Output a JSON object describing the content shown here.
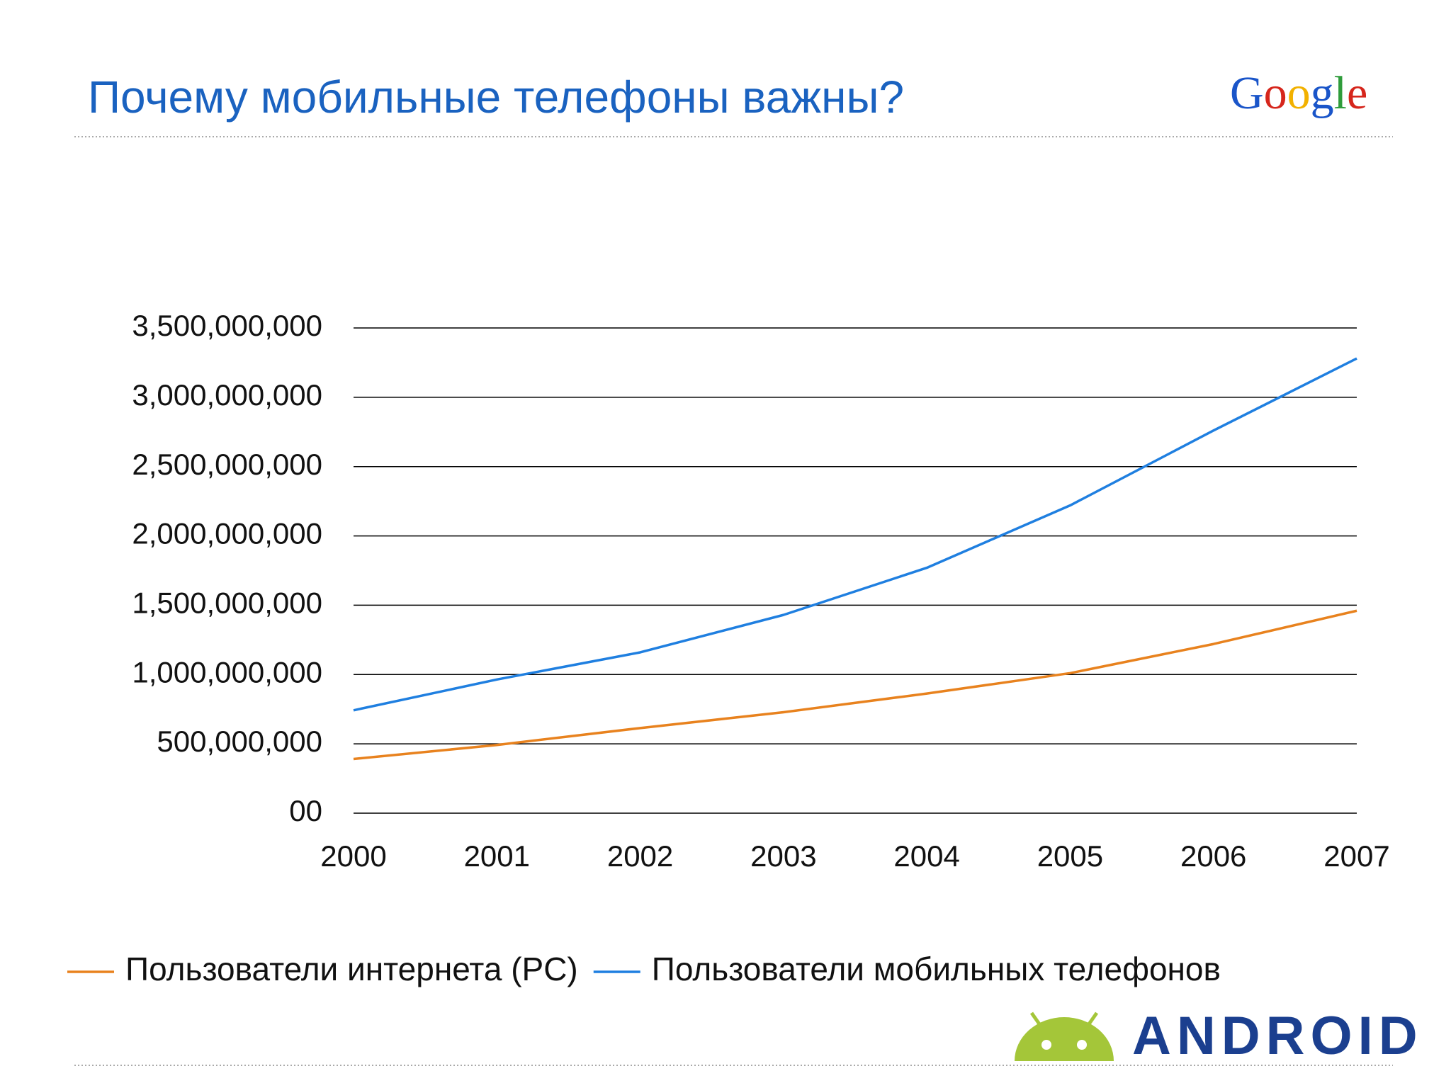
{
  "chart_data": {
    "type": "line",
    "title": "Почему мобильные телефоны важны?",
    "categories": [
      "2000",
      "2001",
      "2002",
      "2003",
      "2004",
      "2005",
      "2006",
      "2007"
    ],
    "series": [
      {
        "name": "Пользователи интернета (PC)",
        "color": "#e8821e",
        "values": [
          391000000,
          492000000,
          614000000,
          728000000,
          863000000,
          1010000000,
          1220000000,
          1460000000
        ]
      },
      {
        "name": "Пользователи мобильных телефонов",
        "color": "#1f7fe0",
        "values": [
          742000000,
          964000000,
          1160000000,
          1430000000,
          1770000000,
          2220000000,
          2760000000,
          3280000000
        ]
      }
    ],
    "ylim": [
      0,
      3500000000
    ],
    "yticks": [
      {
        "value": 0,
        "label": "00"
      },
      {
        "value": 500000000,
        "label": "500,000,000"
      },
      {
        "value": 1000000000,
        "label": "1,000,000,000"
      },
      {
        "value": 1500000000,
        "label": "1,500,000,000"
      },
      {
        "value": 2000000000,
        "label": "2,000,000,000"
      },
      {
        "value": 2500000000,
        "label": "2,500,000,000"
      },
      {
        "value": 3000000000,
        "label": "3,000,000,000"
      },
      {
        "value": 3500000000,
        "label": "3,500,000,000"
      }
    ],
    "grid": true,
    "legend": "bottom"
  },
  "brand": {
    "google": "Google",
    "android": "ANDROID"
  }
}
